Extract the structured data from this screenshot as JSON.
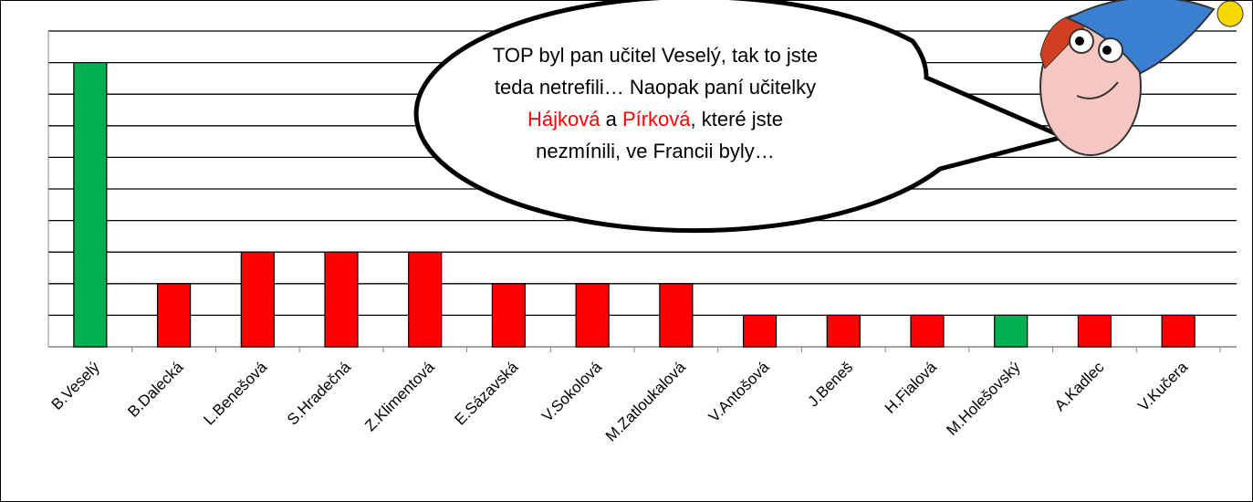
{
  "chart_data": {
    "type": "bar",
    "categories": [
      "B.Veselý",
      "B.Dalecká",
      "L.Benešová",
      "S.Hradečná",
      "Z.Klimentová",
      "E.Sázavská",
      "V.Sokolová",
      "M.Zatloukalová",
      "V.Antošová",
      "J.Beneš",
      "H.Fialová",
      "M.Holešovský",
      "A.Kadlec",
      "V.Kučera"
    ],
    "values": [
      9,
      2,
      3,
      3,
      3,
      2,
      2,
      2,
      1,
      1,
      1,
      1,
      1,
      1
    ],
    "colors": [
      "#00b050",
      "#ff0000",
      "#ff0000",
      "#ff0000",
      "#ff0000",
      "#ff0000",
      "#ff0000",
      "#ff0000",
      "#ff0000",
      "#ff0000",
      "#ff0000",
      "#00b050",
      "#ff0000",
      "#ff0000"
    ],
    "ylim": [
      0,
      10
    ],
    "yticks": [
      0,
      1,
      2,
      3,
      4,
      5,
      6,
      7,
      8,
      9,
      10
    ],
    "grid": true,
    "annotation": [
      [
        {
          "text": "TOP byl pan učitel Veselý, tak to jste",
          "color": "#000000"
        }
      ],
      [
        {
          "text": "teda netrefili… Naopak paní učitelky",
          "color": "#000000"
        }
      ],
      [
        {
          "text": "Hájková",
          "color": "#ff0000"
        },
        {
          "text": " a ",
          "color": "#000000"
        },
        {
          "text": "Pírková",
          "color": "#ff0000"
        },
        {
          "text": ", které jste",
          "color": "#000000"
        }
      ],
      [
        {
          "text": "nezmínili, ve Francii byly…",
          "color": "#000000"
        }
      ]
    ]
  }
}
